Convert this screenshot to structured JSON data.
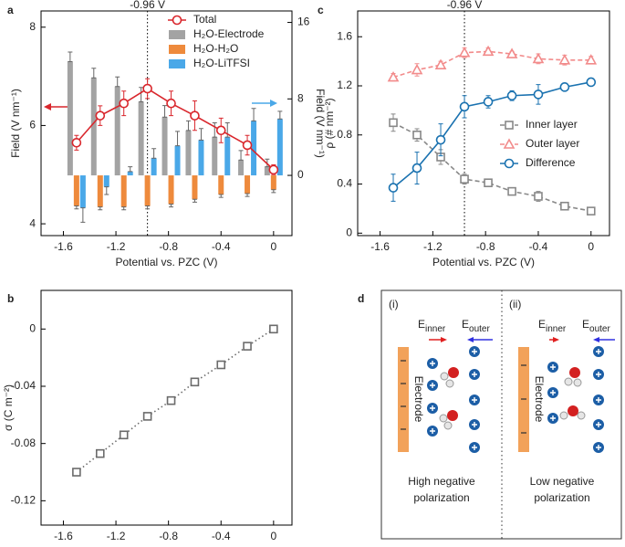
{
  "chart_data": [
    {
      "type": "bar",
      "label": "a",
      "xlabel": "Potential vs. PZC (V)",
      "ylabel": "Field (V nm⁻¹)",
      "y2label": "Field (V nm⁻¹)",
      "x": [
        -1.5,
        -1.32,
        -1.14,
        -0.96,
        -0.78,
        -0.6,
        -0.4,
        -0.2,
        0
      ],
      "xlim": [
        -1.77,
        0.14
      ],
      "xticks": [
        -1.6,
        -1.2,
        -0.8,
        -0.4,
        0
      ],
      "ylim": [
        3.76,
        8.33
      ],
      "yticks": [
        4,
        6,
        8
      ],
      "y2lim": [
        -6.3,
        17.2
      ],
      "y2ticks": [
        0,
        8,
        16
      ],
      "vline": {
        "x": -0.96,
        "label": "-0.96 V"
      },
      "legend": "upper right",
      "series": [
        {
          "name": "Total",
          "type": "line",
          "marker": "circle",
          "linestyle": "solid",
          "color": "#d9262c",
          "values": [
            5.65,
            6.2,
            6.45,
            6.75,
            6.45,
            6.2,
            5.9,
            5.6,
            5.1
          ],
          "errors": [
            0.15,
            0.2,
            0.25,
            0.2,
            0.25,
            0.3,
            0.25,
            0.2,
            0.1
          ]
        },
        {
          "name": "H₂O-Electrode",
          "type": "bar",
          "axis": "y2",
          "color": "#a3a3a3",
          "values": [
            11.9,
            10.2,
            9.3,
            7.7,
            6.1,
            4.7,
            4.0,
            1.6,
            0.9
          ],
          "errors": [
            1,
            1,
            1,
            1.5,
            1.2,
            1,
            1.5,
            1,
            0.8
          ]
        },
        {
          "name": "H₂O-H₂O",
          "type": "bar",
          "axis": "y2",
          "color": "#ee8a3c",
          "values": [
            -3.2,
            -3.3,
            -3.3,
            -3.2,
            -3.0,
            -2.5,
            -2.0,
            -1.9,
            -1.5
          ],
          "errors": [
            0.3,
            0.3,
            0.3,
            0.3,
            0.3,
            0.3,
            0.3,
            0.3,
            0.3
          ]
        },
        {
          "name": "H₂O-LiTFSI",
          "type": "bar",
          "axis": "y2",
          "color": "#4aa8e8",
          "values": [
            -3.4,
            -1.2,
            0.4,
            1.8,
            3.1,
            3.7,
            4.0,
            5.7,
            5.9
          ],
          "errors": [
            1.5,
            0.8,
            0.5,
            1,
            1.5,
            1.2,
            1.5,
            1.3,
            0.8
          ]
        }
      ]
    },
    {
      "type": "scatter",
      "label": "b",
      "xlabel": "Potential vs. PZC (V)",
      "ylabel": "σ (C m⁻²)",
      "x": [
        -1.5,
        -1.32,
        -1.14,
        -0.96,
        -0.78,
        -0.6,
        -0.4,
        -0.2,
        0
      ],
      "values": [
        -0.1,
        -0.087,
        -0.074,
        -0.061,
        -0.05,
        -0.037,
        -0.025,
        -0.012,
        0
      ],
      "errors": [
        0.002,
        0.002,
        0.002,
        0.001,
        0.001,
        0.001,
        0.002,
        0.001,
        0.001
      ],
      "color": "#6b6b6b",
      "marker": "square",
      "linestyle": "dotted",
      "xlim": [
        -1.77,
        0.14
      ],
      "xticks": [
        -1.6,
        -1.2,
        -0.8,
        -0.4,
        0
      ],
      "ylim": [
        -0.137,
        0.027
      ],
      "yticks": [
        -0.12,
        -0.08,
        -0.04,
        0
      ]
    },
    {
      "type": "line",
      "label": "c",
      "xlabel": "Potential vs. PZC (V)",
      "ylabel": "ρ (# nm⁻²)",
      "x": [
        -1.5,
        -1.32,
        -1.14,
        -0.96,
        -0.78,
        -0.6,
        -0.4,
        -0.2,
        0
      ],
      "xlim": [
        -1.77,
        0.14
      ],
      "xticks": [
        -1.6,
        -1.2,
        -0.8,
        -0.4,
        0
      ],
      "ylim": [
        -0.02,
        1.81
      ],
      "yticks": [
        0,
        0.4,
        0.8,
        1.2,
        1.6
      ],
      "vline": {
        "x": -0.96,
        "label": "-0.96 V"
      },
      "legend": "center right",
      "series": [
        {
          "name": "Inner layer",
          "type": "line",
          "marker": "square",
          "linestyle": "dashed",
          "color": "#888888",
          "values": [
            0.9,
            0.8,
            0.62,
            0.44,
            0.41,
            0.34,
            0.3,
            0.22,
            0.18
          ],
          "errors": [
            0.07,
            0.05,
            0.06,
            0.04,
            0.03,
            0.02,
            0.04,
            0.03,
            0.02
          ]
        },
        {
          "name": "Outer layer",
          "type": "line",
          "marker": "triangle",
          "linestyle": "dashed",
          "color": "#f28b8b",
          "values": [
            1.27,
            1.33,
            1.37,
            1.47,
            1.48,
            1.46,
            1.42,
            1.41,
            1.41
          ],
          "errors": [
            0.03,
            0.05,
            0.03,
            0.04,
            0.03,
            0.02,
            0.04,
            0.04,
            0.03
          ]
        },
        {
          "name": "Difference",
          "type": "line",
          "marker": "circle",
          "linestyle": "solid",
          "color": "#1a72b0",
          "values": [
            0.37,
            0.53,
            0.76,
            1.03,
            1.07,
            1.12,
            1.13,
            1.19,
            1.23
          ],
          "errors": [
            0.11,
            0.13,
            0.13,
            0.09,
            0.05,
            0.04,
            0.08,
            0.03,
            0.02
          ]
        }
      ]
    }
  ],
  "diagram": {
    "label": "d",
    "panels": [
      {
        "tag": "(i)",
        "caption": [
          "High negative",
          "polarization"
        ]
      },
      {
        "tag": "(ii)",
        "caption": [
          "Low negative",
          "polarization"
        ]
      }
    ],
    "e_inner": {
      "base": "E",
      "sub": "inner"
    },
    "e_outer": {
      "base": "E",
      "sub": "outer"
    },
    "electrode": "Electrode"
  }
}
